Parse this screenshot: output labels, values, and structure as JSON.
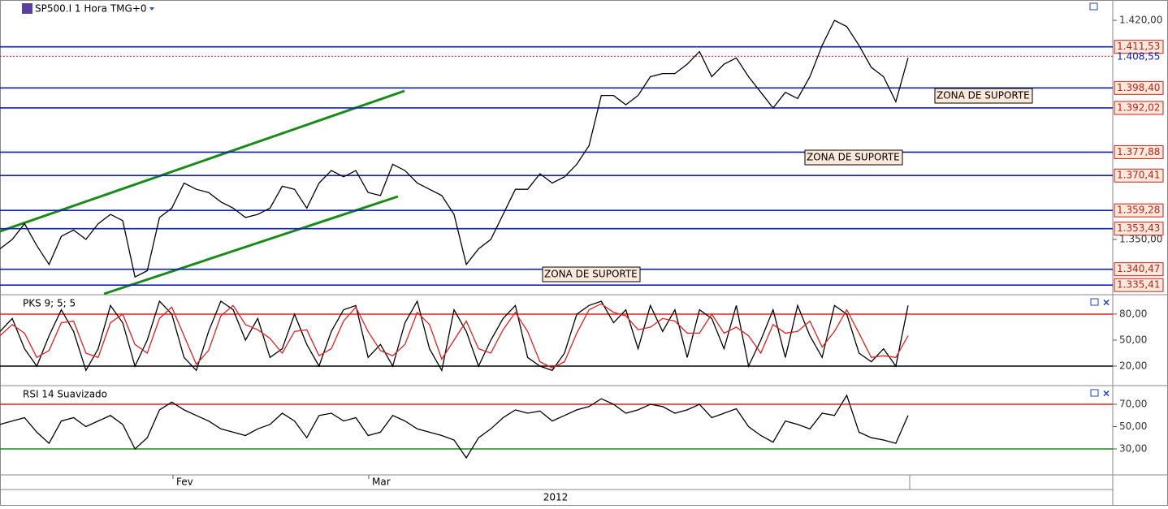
{
  "header": {
    "title": "SP500.I 1 Hora TMG+0"
  },
  "chart_data": [
    {
      "type": "line",
      "color": "#000000",
      "values": [
        1347,
        1350,
        1355,
        1348,
        1342,
        1351,
        1353,
        1350,
        1355,
        1358,
        1356,
        1338,
        1340,
        1357,
        1360,
        1368,
        1366,
        1365,
        1362,
        1360,
        1357,
        1358,
        1360,
        1367,
        1366,
        1360,
        1368,
        1372,
        1370,
        1372,
        1365,
        1364,
        1374,
        1372,
        1368,
        1366,
        1364,
        1358,
        1342,
        1347,
        1350,
        1358,
        1366,
        1366,
        1371,
        1368,
        1370,
        1374,
        1380,
        1396,
        1396,
        1393,
        1396,
        1402,
        1403,
        1403,
        1406,
        1410,
        1402,
        1406,
        1408,
        1402,
        1397,
        1392,
        1397,
        1395,
        1402,
        1412,
        1420,
        1418,
        1412,
        1405,
        1402,
        1394,
        1408
      ],
      "ylim": [
        1332.6,
        1426.5
      ],
      "yticks": [
        {
          "value": 1420,
          "label": "1.420,00"
        },
        {
          "value": 1350,
          "label": "1.350,00"
        }
      ],
      "levels": [
        {
          "value": 1411.53,
          "label": "1.411,53"
        },
        {
          "value": 1398.4,
          "label": "1.398,40"
        },
        {
          "value": 1392.02,
          "label": "1.392,02"
        },
        {
          "value": 1377.88,
          "label": "1.377,88"
        },
        {
          "value": 1370.41,
          "label": "1.370,41"
        },
        {
          "value": 1359.28,
          "label": "1.359,28"
        },
        {
          "value": 1353.43,
          "label": "1.353,43"
        },
        {
          "value": 1340.47,
          "label": "1.340,47"
        },
        {
          "value": 1335.41,
          "label": "1.335,41"
        }
      ],
      "last_price": {
        "value": 1408.55,
        "label": "1.408,55"
      },
      "annotations": [
        "ZONA DE SUPORTE",
        "ZONA DE SUPORTE",
        "ZONA DE SUPORTE"
      ]
    },
    {
      "type": "line",
      "title": "PKS 9; 5; 5",
      "series": [
        {
          "color": "#000000",
          "values": [
            60,
            75,
            40,
            20,
            55,
            85,
            60,
            15,
            40,
            90,
            70,
            20,
            50,
            95,
            80,
            30,
            15,
            60,
            95,
            85,
            50,
            75,
            30,
            40,
            80,
            45,
            20,
            60,
            85,
            90,
            30,
            45,
            20,
            70,
            95,
            40,
            15,
            85,
            60,
            20,
            50,
            75,
            90,
            30,
            20,
            15,
            35,
            80,
            90,
            95,
            70,
            85,
            40,
            90,
            60,
            85,
            30,
            85,
            75,
            40,
            90,
            20,
            50,
            85,
            30,
            90,
            55,
            30,
            90,
            80,
            35,
            25,
            40,
            20,
            90
          ]
        },
        {
          "color": "#e02020",
          "values": [
            55,
            68,
            58,
            30,
            38,
            70,
            72,
            35,
            30,
            70,
            80,
            45,
            35,
            75,
            88,
            55,
            22,
            38,
            78,
            90,
            68,
            62,
            52,
            35,
            60,
            62,
            32,
            40,
            72,
            88,
            60,
            38,
            32,
            45,
            82,
            68,
            28,
            50,
            72,
            40,
            35,
            62,
            82,
            60,
            25,
            18,
            25,
            58,
            85,
            92,
            82,
            78,
            62,
            65,
            75,
            72,
            58,
            58,
            80,
            58,
            65,
            55,
            35,
            68,
            58,
            60,
            72,
            42,
            60,
            85,
            58,
            30,
            32,
            30,
            55
          ]
        }
      ],
      "ylim": [
        -1.6,
        100.6
      ],
      "yticks": [
        {
          "value": 80,
          "label": "80,00"
        },
        {
          "value": 50,
          "label": "50,00"
        },
        {
          "value": 20,
          "label": "20,00"
        }
      ],
      "ref_lines": [
        {
          "value": 80,
          "color": "#e02020"
        },
        {
          "value": 20,
          "color": "#000000"
        }
      ]
    },
    {
      "type": "line",
      "title": "RSI 14 Suavizado",
      "color": "#000000",
      "values": [
        52,
        55,
        58,
        45,
        35,
        55,
        58,
        50,
        55,
        60,
        52,
        30,
        40,
        65,
        72,
        65,
        60,
        55,
        48,
        45,
        42,
        48,
        52,
        62,
        55,
        40,
        60,
        62,
        55,
        58,
        42,
        45,
        60,
        55,
        48,
        45,
        42,
        38,
        22,
        40,
        48,
        58,
        65,
        62,
        64,
        55,
        60,
        65,
        68,
        75,
        70,
        62,
        65,
        70,
        68,
        62,
        65,
        70,
        58,
        62,
        66,
        50,
        42,
        36,
        55,
        52,
        48,
        62,
        60,
        78,
        45,
        40,
        38,
        35,
        60
      ],
      "ylim": [
        6.7,
        85.3
      ],
      "yticks": [
        {
          "value": 70,
          "label": "70,00"
        },
        {
          "value": 50,
          "label": "50,00"
        },
        {
          "value": 30,
          "label": "30,00"
        }
      ],
      "ref_lines": [
        {
          "value": 70,
          "color": "#e02020"
        },
        {
          "value": 30,
          "color": "#1a8a1a"
        }
      ]
    }
  ],
  "x_axis": {
    "months": [
      "Fev",
      "Mar"
    ],
    "year": "2012"
  }
}
